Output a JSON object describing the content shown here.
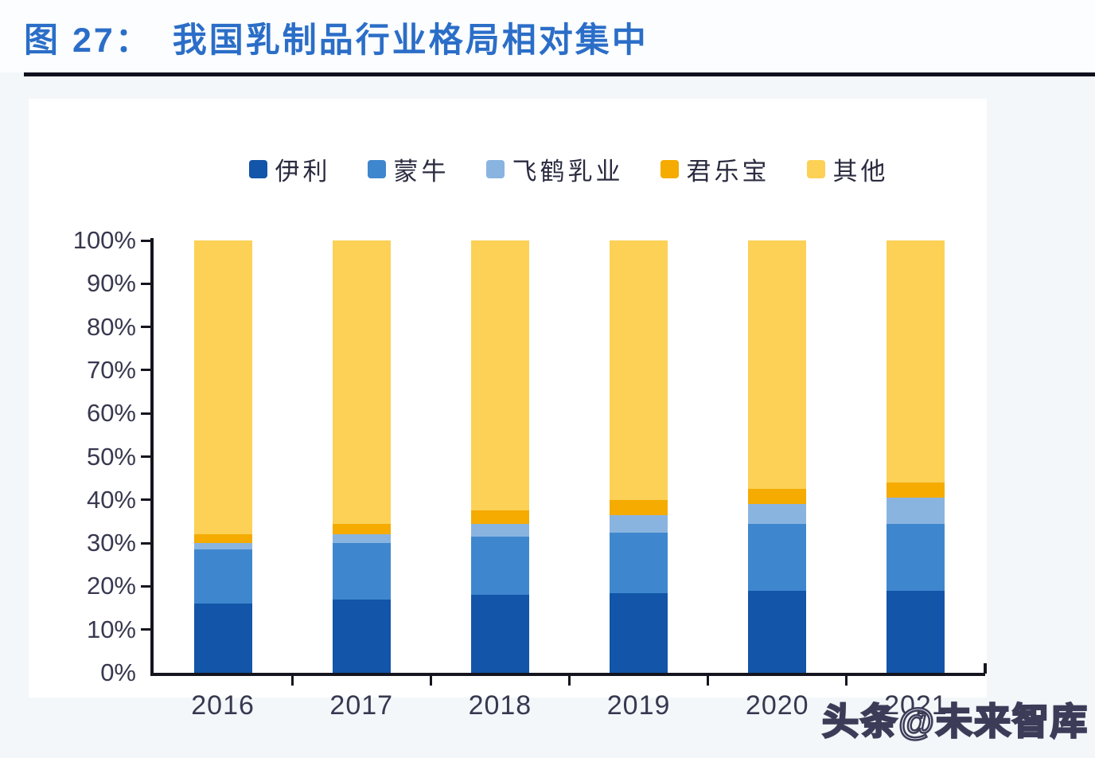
{
  "page": {
    "figure_label": "图 27：",
    "title": "我国乳制品行业格局相对集中",
    "watermark": "头条@未来智库"
  },
  "colors": {
    "title_blue": "#2b6ec8",
    "divider": "#10101e",
    "axis": "#15151f",
    "axis_text": "#383850",
    "legend_text": "#2b2b40",
    "page_background": "#f3f7fa",
    "panel_background": "#ffffff"
  },
  "chart_data": {
    "type": "bar",
    "stacked": true,
    "title": "我国乳制品行业格局相对集中",
    "categories": [
      "2016",
      "2017",
      "2018",
      "2019",
      "2020",
      "2021"
    ],
    "series": [
      {
        "name": "伊利",
        "color": "#1355a8",
        "values": [
          16,
          17,
          18,
          18.5,
          19,
          19
        ]
      },
      {
        "name": "蒙牛",
        "color": "#3e87ce",
        "values": [
          12.5,
          13,
          13.5,
          14,
          15.5,
          15.5
        ]
      },
      {
        "name": "飞鹤乳业",
        "color": "#8ab4e0",
        "values": [
          1.5,
          2,
          3,
          4,
          4.5,
          6
        ]
      },
      {
        "name": "君乐宝",
        "color": "#f5ab00",
        "values": [
          2,
          2.5,
          3,
          3.5,
          3.5,
          3.5
        ]
      },
      {
        "name": "其他",
        "color": "#fcd156",
        "values": [
          68,
          65.5,
          62.5,
          60,
          57.5,
          56
        ]
      }
    ],
    "xlabel": "",
    "ylabel": "",
    "ylim": [
      0,
      100
    ],
    "y_tick_labels": [
      "0%",
      "10%",
      "20%",
      "30%",
      "40%",
      "50%",
      "60%",
      "70%",
      "80%",
      "90%",
      "100%"
    ],
    "grid": false,
    "legend_position": "top"
  }
}
